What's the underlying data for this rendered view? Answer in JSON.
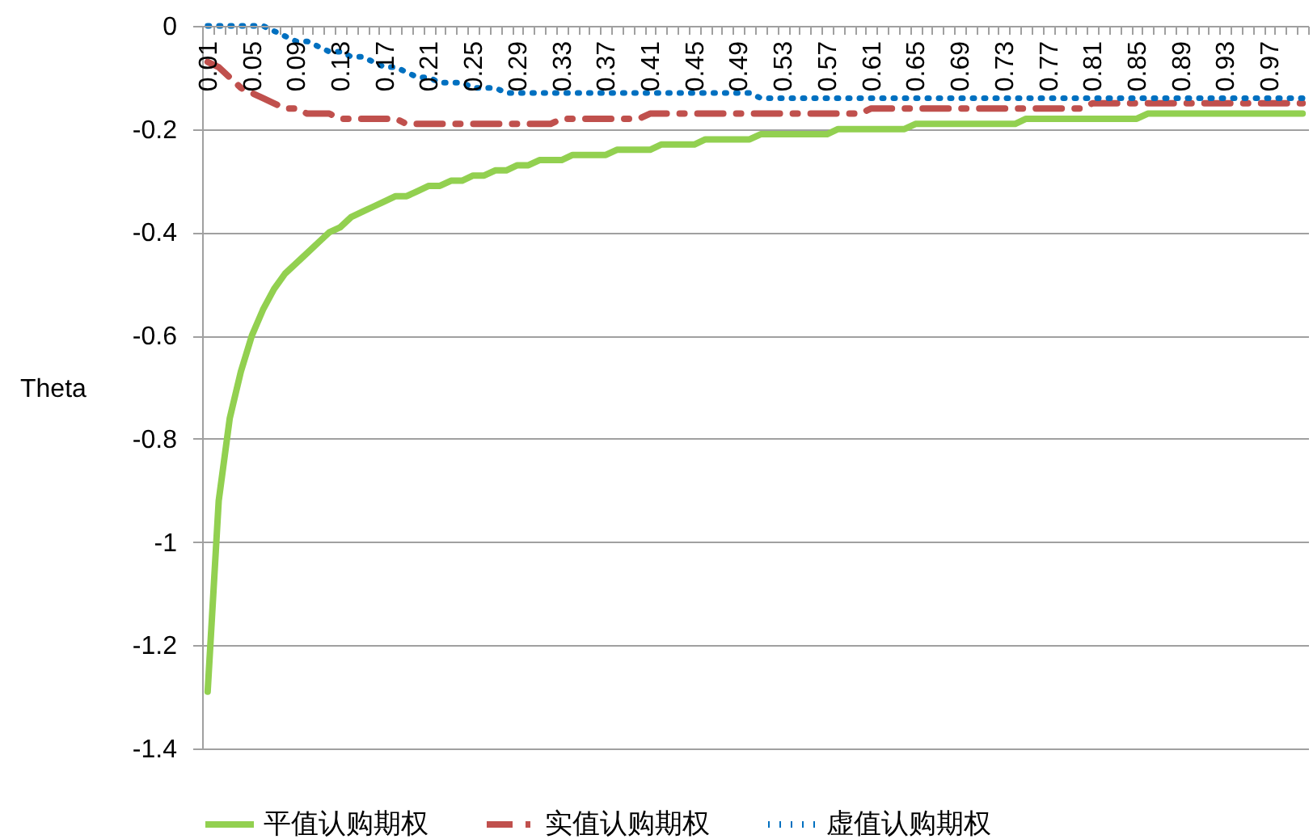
{
  "chart_data": {
    "type": "line",
    "ylabel": "Theta",
    "categories": [
      "0.01",
      null,
      null,
      null,
      "0.05",
      null,
      null,
      null,
      "0.09",
      null,
      null,
      null,
      "0.13",
      null,
      null,
      null,
      "0.17",
      null,
      null,
      null,
      "0.21",
      null,
      null,
      null,
      "0.25",
      null,
      null,
      null,
      "0.29",
      null,
      null,
      null,
      "0.33",
      null,
      null,
      null,
      "0.37",
      null,
      null,
      null,
      "0.41",
      null,
      null,
      null,
      "0.45",
      null,
      null,
      null,
      "0.49",
      null,
      null,
      null,
      "0.53",
      null,
      null,
      null,
      "0.57",
      null,
      null,
      null,
      "0.61",
      null,
      null,
      null,
      "0.65",
      null,
      null,
      null,
      "0.69",
      null,
      null,
      null,
      "0.73",
      null,
      null,
      null,
      "0.77",
      null,
      null,
      null,
      "0.81",
      null,
      null,
      null,
      "0.85",
      null,
      null,
      null,
      "0.89",
      null,
      null,
      null,
      "0.93",
      null,
      null,
      null,
      "0.97",
      null,
      null,
      null
    ],
    "series": [
      {
        "name": "平值认购期权",
        "color": "#92d050",
        "line_style": "solid",
        "values": [
          -1.29,
          -0.92,
          -0.76,
          -0.67,
          -0.6,
          -0.55,
          -0.51,
          -0.48,
          -0.46,
          -0.44,
          -0.42,
          -0.4,
          -0.39,
          -0.37,
          -0.36,
          -0.35,
          -0.34,
          -0.33,
          -0.33,
          -0.32,
          -0.31,
          -0.31,
          -0.3,
          -0.3,
          -0.29,
          -0.29,
          -0.28,
          -0.28,
          -0.27,
          -0.27,
          -0.26,
          -0.26,
          -0.26,
          -0.25,
          -0.25,
          -0.25,
          -0.25,
          -0.24,
          -0.24,
          -0.24,
          -0.24,
          -0.23,
          -0.23,
          -0.23,
          -0.23,
          -0.22,
          -0.22,
          -0.22,
          -0.22,
          -0.22,
          -0.21,
          -0.21,
          -0.21,
          -0.21,
          -0.21,
          -0.21,
          -0.21,
          -0.2,
          -0.2,
          -0.2,
          -0.2,
          -0.2,
          -0.2,
          -0.2,
          -0.19,
          -0.19,
          -0.19,
          -0.19,
          -0.19,
          -0.19,
          -0.19,
          -0.19,
          -0.19,
          -0.19,
          -0.18,
          -0.18,
          -0.18,
          -0.18,
          -0.18,
          -0.18,
          -0.18,
          -0.18,
          -0.18,
          -0.18,
          -0.18,
          -0.17,
          -0.17,
          -0.17,
          -0.17,
          -0.17,
          -0.17,
          -0.17,
          -0.17,
          -0.17,
          -0.17,
          -0.17,
          -0.17,
          -0.17,
          -0.17,
          -0.17
        ]
      },
      {
        "name": "实值认购期权",
        "color": "#c0504d",
        "line_style": "dashed",
        "values": [
          -0.07,
          -0.08,
          -0.1,
          -0.12,
          -0.13,
          -0.14,
          -0.15,
          -0.16,
          -0.16,
          -0.17,
          -0.17,
          -0.17,
          -0.18,
          -0.18,
          -0.18,
          -0.18,
          -0.18,
          -0.18,
          -0.19,
          -0.19,
          -0.19,
          -0.19,
          -0.19,
          -0.19,
          -0.19,
          -0.19,
          -0.19,
          -0.19,
          -0.19,
          -0.19,
          -0.19,
          -0.19,
          -0.18,
          -0.18,
          -0.18,
          -0.18,
          -0.18,
          -0.18,
          -0.18,
          -0.18,
          -0.17,
          -0.17,
          -0.17,
          -0.17,
          -0.17,
          -0.17,
          -0.17,
          -0.17,
          -0.17,
          -0.17,
          -0.17,
          -0.17,
          -0.17,
          -0.17,
          -0.17,
          -0.17,
          -0.17,
          -0.17,
          -0.17,
          -0.17,
          -0.16,
          -0.16,
          -0.16,
          -0.16,
          -0.16,
          -0.16,
          -0.16,
          -0.16,
          -0.16,
          -0.16,
          -0.16,
          -0.16,
          -0.16,
          -0.16,
          -0.16,
          -0.16,
          -0.16,
          -0.16,
          -0.16,
          -0.16,
          -0.15,
          -0.15,
          -0.15,
          -0.15,
          -0.15,
          -0.15,
          -0.15,
          -0.15,
          -0.15,
          -0.15,
          -0.15,
          -0.15,
          -0.15,
          -0.15,
          -0.15,
          -0.15,
          -0.15,
          -0.15,
          -0.15,
          -0.15
        ]
      },
      {
        "name": "虚值认购期权",
        "color": "#0070c0",
        "line_style": "dotted",
        "values": [
          0,
          0,
          0,
          0,
          0,
          0,
          -0.01,
          -0.02,
          -0.03,
          -0.03,
          -0.04,
          -0.05,
          -0.05,
          -0.06,
          -0.06,
          -0.07,
          -0.08,
          -0.08,
          -0.09,
          -0.1,
          -0.1,
          -0.11,
          -0.11,
          -0.11,
          -0.12,
          -0.12,
          -0.12,
          -0.13,
          -0.13,
          -0.13,
          -0.13,
          -0.13,
          -0.13,
          -0.13,
          -0.13,
          -0.13,
          -0.13,
          -0.13,
          -0.13,
          -0.13,
          -0.13,
          -0.13,
          -0.13,
          -0.13,
          -0.13,
          -0.13,
          -0.13,
          -0.13,
          -0.13,
          -0.13,
          -0.14,
          -0.14,
          -0.14,
          -0.14,
          -0.14,
          -0.14,
          -0.14,
          -0.14,
          -0.14,
          -0.14,
          -0.14,
          -0.14,
          -0.14,
          -0.14,
          -0.14,
          -0.14,
          -0.14,
          -0.14,
          -0.14,
          -0.14,
          -0.14,
          -0.14,
          -0.14,
          -0.14,
          -0.14,
          -0.14,
          -0.14,
          -0.14,
          -0.14,
          -0.14,
          -0.14,
          -0.14,
          -0.14,
          -0.14,
          -0.14,
          -0.14,
          -0.14,
          -0.14,
          -0.14,
          -0.14,
          -0.14,
          -0.14,
          -0.14,
          -0.14,
          -0.14,
          -0.14,
          -0.14,
          -0.14,
          -0.14,
          -0.14
        ]
      }
    ],
    "ylim": [
      -1.4,
      0
    ],
    "yticks": [
      0,
      -0.2,
      -0.4,
      -0.6,
      -0.8,
      -1,
      -1.2,
      -1.4
    ],
    "grid": "y",
    "legend": "bottom",
    "marker": "none"
  }
}
